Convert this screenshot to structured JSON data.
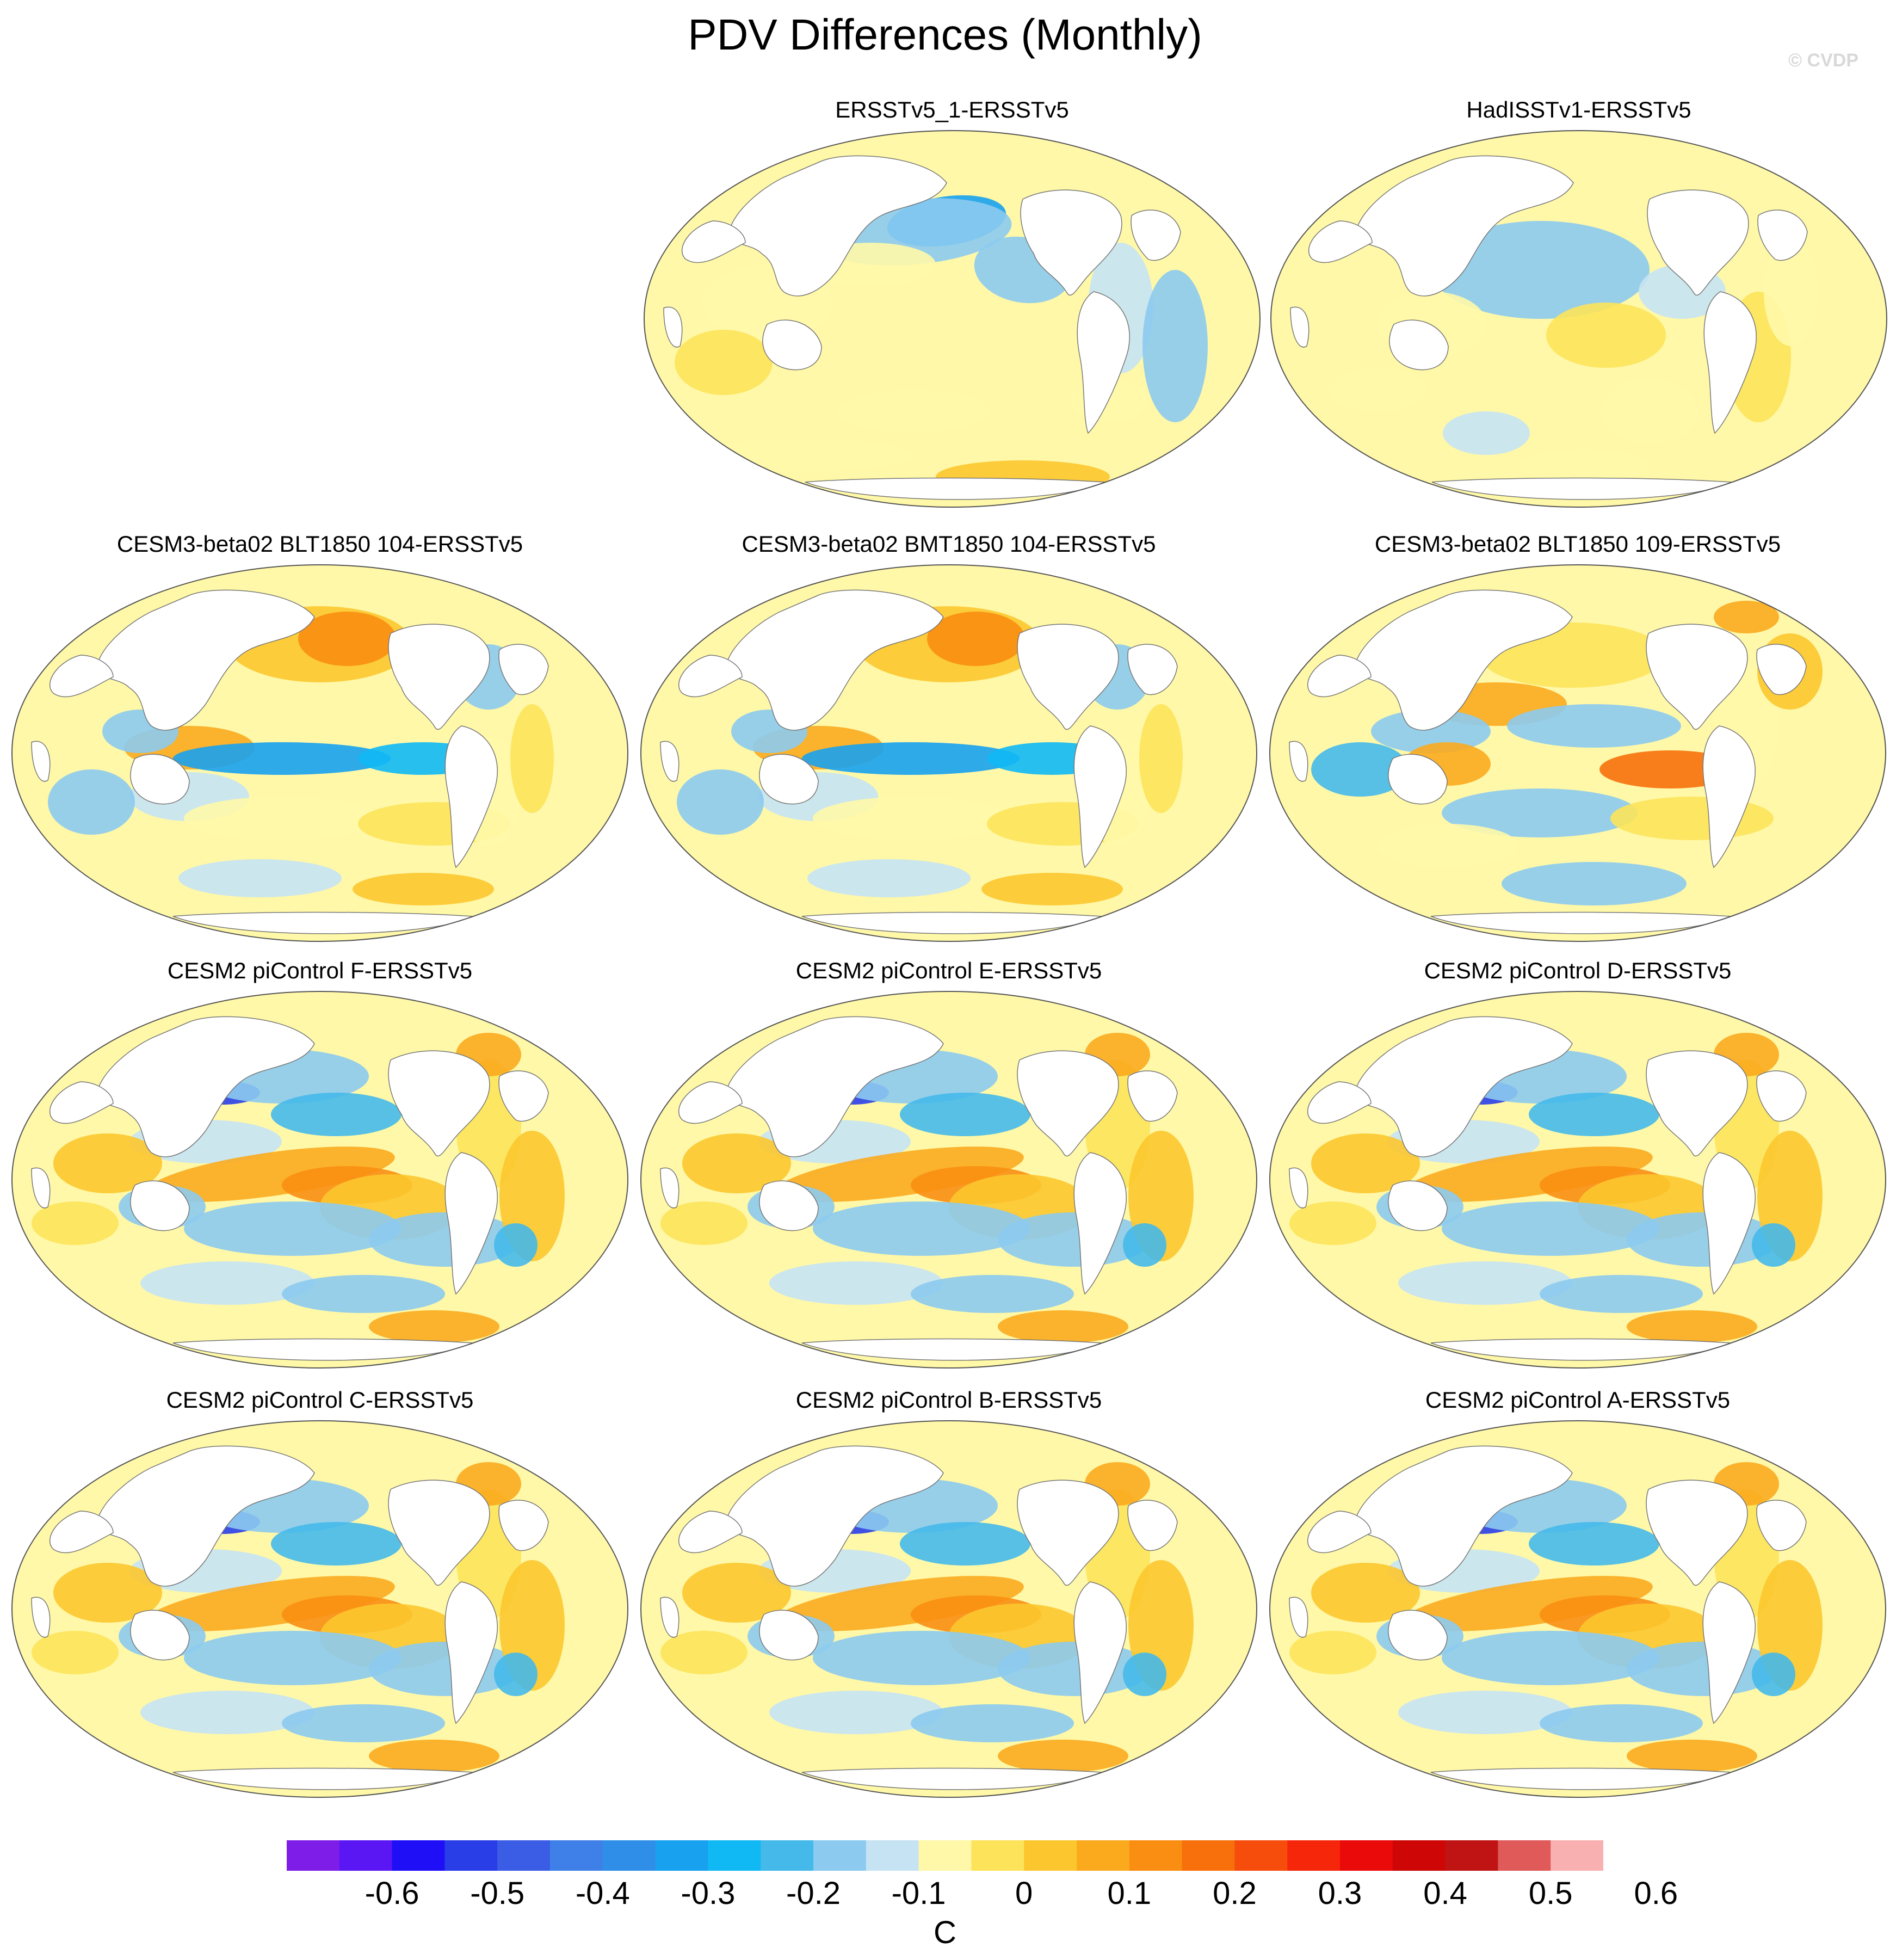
{
  "title": "PDV Differences (Monthly)",
  "watermark": "© CVDP",
  "panels": [
    {
      "title": "ERSSTv5_1-ERSSTv5",
      "pattern": "obs1"
    },
    {
      "title": "HadISSTv1-ERSSTv5",
      "pattern": "obs2"
    },
    {
      "title": "CESM3-beta02 BLT1850 104-ERSSTv5",
      "pattern": "beta"
    },
    {
      "title": "CESM3-beta02 BMT1850 104-ERSSTv5",
      "pattern": "beta"
    },
    {
      "title": "CESM3-beta02 BLT1850 109-ERSSTv5",
      "pattern": "beta109"
    },
    {
      "title": "CESM2 piControl F-ERSSTv5",
      "pattern": "cesm2"
    },
    {
      "title": "CESM2 piControl E-ERSSTv5",
      "pattern": "cesm2"
    },
    {
      "title": "CESM2 piControl D-ERSSTv5",
      "pattern": "cesm2"
    },
    {
      "title": "CESM2 piControl C-ERSSTv5",
      "pattern": "cesm2"
    },
    {
      "title": "CESM2 piControl B-ERSSTv5",
      "pattern": "cesm2"
    },
    {
      "title": "CESM2 piControl A-ERSSTv5",
      "pattern": "cesm2"
    }
  ],
  "colorbar": {
    "units": "C",
    "tick_labels": [
      "-0.6",
      "-0.5",
      "-0.4",
      "-0.3",
      "-0.2",
      "-0.1",
      "0",
      "0.1",
      "0.2",
      "0.3",
      "0.4",
      "0.5",
      "0.6"
    ],
    "colors": [
      "#7e1de8",
      "#5a17f3",
      "#1e0ff7",
      "#2a3ee8",
      "#3b5de6",
      "#3f7fe8",
      "#2f8fe8",
      "#18a1ee",
      "#10b8f4",
      "#45b9ea",
      "#8ccaf0",
      "#c6e3f4",
      "#fff8a8",
      "#fde35a",
      "#fcc72e",
      "#fbaa1e",
      "#f98e12",
      "#f7700c",
      "#f64c0c",
      "#f6260b",
      "#ea0a0a",
      "#cf0606",
      "#c01414",
      "#e05a5a",
      "#f8b0b0"
    ]
  },
  "chart_data": {
    "type": "heatmap",
    "title": "PDV Differences (Monthly)",
    "projection": "Robinson global, Pacific-centered",
    "variable": "SST regression difference",
    "units": "C",
    "contour_levels": [
      -0.65,
      -0.6,
      -0.55,
      -0.5,
      -0.45,
      -0.4,
      -0.35,
      -0.3,
      -0.25,
      -0.2,
      -0.15,
      -0.1,
      -0.05,
      0,
      0.05,
      0.1,
      0.15,
      0.2,
      0.25,
      0.3,
      0.35,
      0.4,
      0.45,
      0.5,
      0.55,
      0.6,
      0.65
    ],
    "range": [
      -0.65,
      0.65
    ],
    "panels": [
      "ERSSTv5_1-ERSSTv5",
      "HadISSTv1-ERSSTv5",
      "CESM3-beta02 BLT1850 104-ERSSTv5",
      "CESM3-beta02 BMT1850 104-ERSSTv5",
      "CESM3-beta02 BLT1850 109-ERSSTv5",
      "CESM2 piControl F-ERSSTv5",
      "CESM2 piControl E-ERSSTv5",
      "CESM2 piControl D-ERSSTv5",
      "CESM2 piControl C-ERSSTv5",
      "CESM2 piControl B-ERSSTv5",
      "CESM2 piControl A-ERSSTv5"
    ]
  }
}
